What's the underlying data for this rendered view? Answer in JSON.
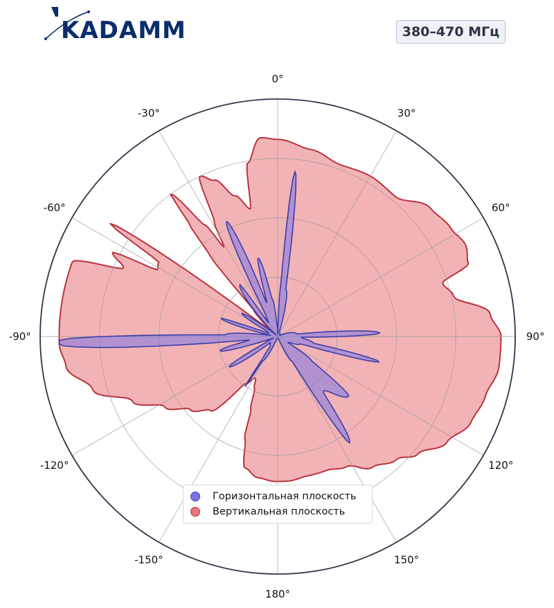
{
  "header": {
    "logo_text": "KADAMM",
    "band": "380–470 МГц"
  },
  "colors": {
    "horizontal_fill": "#7b74e6",
    "horizontal_edge": "#3b3ca8",
    "vertical_fill": "#e8757b",
    "vertical_edge": "#b8323c",
    "brand": "#0b2d6b"
  },
  "chart_data": {
    "type": "polar",
    "theta_zero": "top",
    "theta_direction": "clockwise",
    "theta_ticks": [
      "0°",
      "30°",
      "60°",
      "90°",
      "120°",
      "150°",
      "180°",
      "-150°",
      "-120°",
      "-90°",
      "-60°",
      "-30°"
    ],
    "rlim": [
      0,
      1
    ],
    "grid": true,
    "legend_position": "bottom-center",
    "series": [
      {
        "name": "Горизонтальная плоскость",
        "color": "#7b74e6",
        "points": [
          [
            -91,
            0.92
          ],
          [
            -88,
            0.22
          ],
          [
            -80,
            0.03
          ],
          [
            -72,
            0.25
          ],
          [
            -70,
            0.04
          ],
          [
            -64,
            0.05
          ],
          [
            -57,
            0.18
          ],
          [
            -52,
            0.05
          ],
          [
            -48,
            0.01
          ],
          [
            -36,
            0.27
          ],
          [
            -34,
            0.07
          ],
          [
            -29,
            0.1
          ],
          [
            -24,
            0.53
          ],
          [
            -18,
            0.15
          ],
          [
            -14,
            0.34
          ],
          [
            -8,
            0.16
          ],
          [
            -3,
            0.05
          ],
          [
            1,
            0.01
          ],
          [
            3,
            0.2
          ],
          [
            6,
            0.7
          ],
          [
            10,
            0.2
          ],
          [
            20,
            0.02
          ],
          [
            60,
            0.01
          ],
          [
            82,
            0.08
          ],
          [
            88,
            0.43
          ],
          [
            92,
            0.1
          ],
          [
            100,
            0.15
          ],
          [
            104,
            0.44
          ],
          [
            108,
            0.1
          ],
          [
            120,
            0.05
          ],
          [
            125,
            0.17
          ],
          [
            130,
            0.39
          ],
          [
            140,
            0.3
          ],
          [
            146,
            0.54
          ],
          [
            150,
            0.12
          ],
          [
            160,
            0.01
          ],
          [
            200,
            0.01
          ],
          [
            212,
            0.12
          ],
          [
            213,
            0.25
          ],
          [
            215,
            0.1
          ],
          [
            218,
            0.05
          ],
          [
            230,
            0.04
          ],
          [
            238,
            0.24
          ],
          [
            244,
            0.05
          ],
          [
            250,
            0.02
          ],
          [
            256,
            0.25
          ],
          [
            263,
            0.12
          ],
          [
            268,
            0.92
          ]
        ]
      },
      {
        "name": "Вертикальная плоскость",
        "color": "#e8757b",
        "points": [
          [
            -91,
            0.92
          ],
          [
            -86,
            0.92
          ],
          [
            -80,
            0.92
          ],
          [
            -74,
            0.92
          ],
          [
            -70,
            0.92
          ],
          [
            -66,
            0.71
          ],
          [
            -63,
            0.78
          ],
          [
            -61,
            0.58
          ],
          [
            -58,
            0.59
          ],
          [
            -56,
            0.85
          ],
          [
            -52,
            0.09
          ],
          [
            -49,
            0.02
          ],
          [
            -42,
            0.15
          ],
          [
            -40,
            0.44
          ],
          [
            -38,
            0.61
          ],
          [
            -37,
            0.75
          ],
          [
            -33,
            0.56
          ],
          [
            -31,
            0.44
          ],
          [
            -29,
            0.55
          ],
          [
            -26,
            0.75
          ],
          [
            -22,
            0.71
          ],
          [
            -17,
            0.62
          ],
          [
            -12,
            0.55
          ],
          [
            -10,
            0.74
          ],
          [
            -5,
            0.84
          ],
          [
            0,
            0.83
          ],
          [
            10,
            0.8
          ],
          [
            20,
            0.77
          ],
          [
            30,
            0.78
          ],
          [
            40,
            0.77
          ],
          [
            50,
            0.84
          ],
          [
            58,
            0.86
          ],
          [
            64,
            0.88
          ],
          [
            69,
            0.86
          ],
          [
            72,
            0.73
          ],
          [
            77,
            0.76
          ],
          [
            84,
            0.9
          ],
          [
            90,
            0.94
          ],
          [
            98,
            0.94
          ],
          [
            106,
            0.91
          ],
          [
            114,
            0.89
          ],
          [
            122,
            0.84
          ],
          [
            130,
            0.77
          ],
          [
            136,
            0.72
          ],
          [
            144,
            0.68
          ],
          [
            152,
            0.62
          ],
          [
            160,
            0.6
          ],
          [
            168,
            0.6
          ],
          [
            176,
            0.61
          ],
          [
            181,
            0.61
          ],
          [
            188,
            0.6
          ],
          [
            194,
            0.57
          ],
          [
            198,
            0.45
          ],
          [
            200,
            0.33
          ],
          [
            204,
            0.24
          ],
          [
            208,
            0.2
          ],
          [
            209,
            0.2
          ],
          [
            214,
            0.24
          ],
          [
            222,
            0.42
          ],
          [
            230,
            0.48
          ],
          [
            238,
            0.56
          ],
          [
            246,
            0.67
          ],
          [
            254,
            0.81
          ],
          [
            262,
            0.9
          ],
          [
            268,
            0.92
          ]
        ]
      }
    ]
  }
}
